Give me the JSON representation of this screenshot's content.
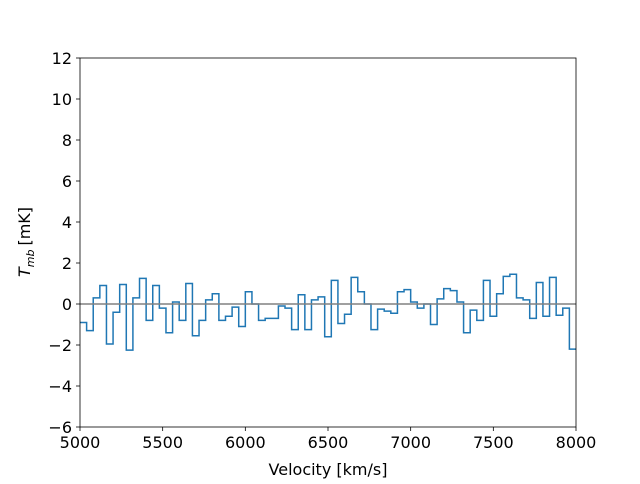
{
  "chart_data": {
    "type": "step",
    "xlabel": "Velocity [km/s]",
    "ylabel": {
      "symbol": "T",
      "subscript": "mb",
      "unit": "[mK]"
    },
    "x": [
      5000,
      5040,
      5080,
      5120,
      5160,
      5200,
      5240,
      5280,
      5320,
      5360,
      5400,
      5440,
      5480,
      5520,
      5560,
      5600,
      5640,
      5680,
      5720,
      5760,
      5800,
      5840,
      5880,
      5920,
      5960,
      6000,
      6040,
      6080,
      6120,
      6160,
      6200,
      6240,
      6280,
      6320,
      6360,
      6400,
      6440,
      6480,
      6520,
      6560,
      6600,
      6640,
      6680,
      6720,
      6760,
      6800,
      6840,
      6880,
      6920,
      6960,
      7000,
      7040,
      7080,
      7120,
      7160,
      7200,
      7240,
      7280,
      7320,
      7360,
      7400,
      7440,
      7480,
      7520,
      7560,
      7600,
      7640,
      7680,
      7720,
      7760,
      7800,
      7840,
      7880,
      7920,
      7960
    ],
    "series": [
      {
        "color": "#1f77b4",
        "values": [
          -0.9,
          -1.3,
          0.3,
          0.9,
          -1.95,
          -0.4,
          0.95,
          -2.25,
          0.3,
          1.25,
          -0.8,
          0.9,
          -0.2,
          -1.4,
          0.1,
          -0.8,
          1.0,
          -1.55,
          -0.8,
          0.2,
          0.5,
          -0.8,
          -0.6,
          -0.15,
          -1.1,
          0.6,
          0,
          -0.8,
          -0.7,
          -0.7,
          -0.1,
          -0.2,
          -1.25,
          0.45,
          -1.25,
          0.2,
          0.35,
          -1.6,
          1.15,
          -0.95,
          -0.5,
          1.3,
          0.6,
          0,
          -1.25,
          -0.25,
          -0.35,
          -0.45,
          0.6,
          0.7,
          0.1,
          -0.2,
          0,
          -1.0,
          0.25,
          0.75,
          0.65,
          0.1,
          -1.4,
          -0.3,
          -0.8,
          1.15,
          -0.6,
          0.5,
          1.35,
          1.45,
          0.3,
          0.2,
          -0.7,
          1.05,
          -0.6,
          1.3,
          -0.55,
          -0.2,
          -2.2
        ]
      }
    ],
    "hline": {
      "value": 0,
      "color": "#808080"
    },
    "xlim": [
      5000,
      8000
    ],
    "xticks": [
      5000,
      5500,
      6000,
      6500,
      7000,
      7500,
      8000
    ],
    "ylim": [
      -6,
      12
    ],
    "yticks": [
      {
        "value": -6,
        "label": "−6"
      },
      {
        "value": -4,
        "label": "−4"
      },
      {
        "value": -2,
        "label": "−2"
      },
      0,
      2,
      4,
      6,
      8,
      10,
      12
    ]
  }
}
